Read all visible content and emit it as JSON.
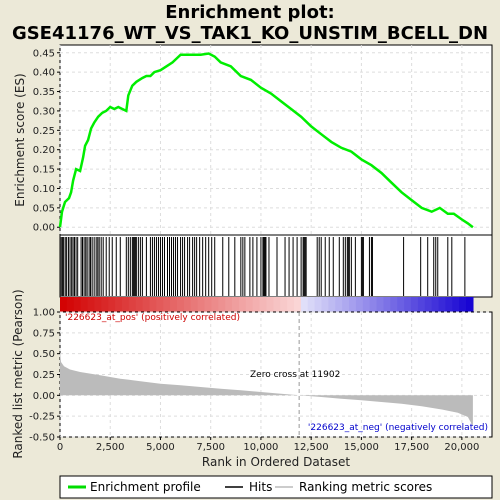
{
  "chart_data": {
    "type": "line",
    "title_line1": "Enrichment plot:",
    "title_line2": "GSE41176_WT_VS_TAK1_KO_UNSTIM_BCELL_DN",
    "xlabel": "Rank in Ordered Dataset",
    "ylabel_top": "Enrichment score (ES)",
    "ylabel_bottom": "Ranked list metric (Pearson)",
    "x_range": [
      0,
      21500
    ],
    "x_ticks": [
      0,
      2500,
      5000,
      7500,
      10000,
      12500,
      15000,
      17500,
      20000
    ],
    "x_tick_labels": [
      "0",
      "2,500",
      "5,000",
      "7,500",
      "10,000",
      "12,500",
      "15,000",
      "17,500",
      "20,000"
    ],
    "es_ylim": [
      -0.02,
      0.47
    ],
    "es_ticks": [
      0.0,
      0.05,
      0.1,
      0.15,
      0.2,
      0.25,
      0.3,
      0.35,
      0.4,
      0.45
    ],
    "es_tick_labels": [
      "0.00",
      "0.05",
      "0.10",
      "0.15",
      "0.20",
      "0.25",
      "0.30",
      "0.35",
      "0.40",
      "0.45"
    ],
    "metric_ylim": [
      -0.5,
      1.0
    ],
    "metric_ticks": [
      -0.5,
      -0.25,
      0.0,
      0.25,
      0.5,
      0.75,
      1.0
    ],
    "metric_tick_labels": [
      "-0.50",
      "-0.25",
      "0.00",
      "0.25",
      "0.50",
      "0.75",
      "1.00"
    ],
    "grid": true,
    "es_curve": [
      [
        0,
        0.0
      ],
      [
        100,
        0.04
      ],
      [
        250,
        0.065
      ],
      [
        450,
        0.075
      ],
      [
        550,
        0.09
      ],
      [
        650,
        0.12
      ],
      [
        800,
        0.15
      ],
      [
        1000,
        0.145
      ],
      [
        1150,
        0.18
      ],
      [
        1250,
        0.21
      ],
      [
        1400,
        0.225
      ],
      [
        1550,
        0.255
      ],
      [
        1700,
        0.27
      ],
      [
        1900,
        0.285
      ],
      [
        2100,
        0.295
      ],
      [
        2300,
        0.3
      ],
      [
        2500,
        0.31
      ],
      [
        2700,
        0.305
      ],
      [
        2900,
        0.31
      ],
      [
        3100,
        0.305
      ],
      [
        3300,
        0.3
      ],
      [
        3400,
        0.34
      ],
      [
        3600,
        0.365
      ],
      [
        3800,
        0.375
      ],
      [
        4100,
        0.385
      ],
      [
        4300,
        0.39
      ],
      [
        4500,
        0.39
      ],
      [
        4700,
        0.4
      ],
      [
        5000,
        0.405
      ],
      [
        5300,
        0.415
      ],
      [
        5600,
        0.425
      ],
      [
        5800,
        0.435
      ],
      [
        6000,
        0.445
      ],
      [
        6300,
        0.445
      ],
      [
        6600,
        0.445
      ],
      [
        7000,
        0.445
      ],
      [
        7400,
        0.448
      ],
      [
        7700,
        0.44
      ],
      [
        8000,
        0.425
      ],
      [
        8500,
        0.415
      ],
      [
        9000,
        0.39
      ],
      [
        9500,
        0.38
      ],
      [
        10000,
        0.36
      ],
      [
        10500,
        0.345
      ],
      [
        11000,
        0.325
      ],
      [
        11500,
        0.305
      ],
      [
        12000,
        0.285
      ],
      [
        12500,
        0.26
      ],
      [
        13000,
        0.24
      ],
      [
        13500,
        0.22
      ],
      [
        14000,
        0.205
      ],
      [
        14500,
        0.195
      ],
      [
        15000,
        0.175
      ],
      [
        15500,
        0.16
      ],
      [
        16000,
        0.14
      ],
      [
        16500,
        0.115
      ],
      [
        17000,
        0.09
      ],
      [
        17500,
        0.07
      ],
      [
        18000,
        0.05
      ],
      [
        18500,
        0.04
      ],
      [
        18900,
        0.05
      ],
      [
        19300,
        0.035
      ],
      [
        19600,
        0.035
      ],
      [
        20000,
        0.02
      ],
      [
        20300,
        0.01
      ],
      [
        20550,
        0.0
      ]
    ],
    "hits": [
      60,
      120,
      180,
      260,
      330,
      420,
      500,
      580,
      650,
      720,
      800,
      880,
      1050,
      1120,
      1200,
      1280,
      1350,
      1450,
      1520,
      1600,
      1700,
      1800,
      1880,
      1950,
      2050,
      2150,
      2300,
      2450,
      2600,
      2800,
      3000,
      3300,
      3400,
      3500,
      3600,
      3650,
      3700,
      3750,
      3800,
      3900,
      4000,
      4100,
      4300,
      4500,
      4600,
      4700,
      4800,
      4900,
      5000,
      5100,
      5200,
      5350,
      5450,
      5550,
      5650,
      5750,
      5850,
      6000,
      6100,
      6200,
      6350,
      6450,
      6600,
      6700,
      6800,
      6950,
      7100,
      7250,
      7400,
      7550,
      7700,
      8100,
      8400,
      8700,
      9000,
      9100,
      9200,
      9450,
      9600,
      9800,
      10000,
      10100,
      10150,
      10200,
      10250,
      10400,
      10800,
      11200,
      11400,
      11600,
      11800,
      12000,
      12100,
      12150,
      12200,
      12250,
      12800,
      12900,
      13000,
      13200,
      13400,
      13600,
      13900,
      14100,
      14200,
      14300,
      14350,
      14400,
      14500,
      14700,
      15000,
      15050,
      15100,
      15400,
      15500,
      15550,
      17100,
      17950,
      18300,
      18600,
      18700,
      18800,
      19300,
      19500,
      20150
    ],
    "metric_curve": [
      [
        0,
        0.52
      ],
      [
        50,
        0.4
      ],
      [
        200,
        0.35
      ],
      [
        500,
        0.31
      ],
      [
        1000,
        0.28
      ],
      [
        2000,
        0.24
      ],
      [
        3000,
        0.2
      ],
      [
        4000,
        0.17
      ],
      [
        5000,
        0.14
      ],
      [
        6000,
        0.12
      ],
      [
        7000,
        0.1
      ],
      [
        8000,
        0.08
      ],
      [
        9000,
        0.06
      ],
      [
        10000,
        0.04
      ],
      [
        11000,
        0.02
      ],
      [
        11902,
        0.0
      ],
      [
        13000,
        -0.02
      ],
      [
        14000,
        -0.04
      ],
      [
        15000,
        -0.06
      ],
      [
        16000,
        -0.08
      ],
      [
        17000,
        -0.1
      ],
      [
        18000,
        -0.13
      ],
      [
        19000,
        -0.17
      ],
      [
        19800,
        -0.21
      ],
      [
        20300,
        -0.26
      ],
      [
        20550,
        -0.37
      ]
    ],
    "zero_cross": 11902,
    "zero_cross_text": "Zero cross at 11902",
    "pos_label": "'226623_at_pos' (positively correlated)",
    "neg_label": "'226623_at_neg' (negatively correlated)",
    "legend": [
      {
        "label": "Enrichment profile",
        "color": "#00dd00"
      },
      {
        "label": "Hits",
        "color": "#000000"
      },
      {
        "label": "Ranking metric scores",
        "color": "#bbbbbb"
      }
    ],
    "colors": {
      "es_line": "#00ee00",
      "pos_text": "#cc0000",
      "neg_text": "#0000cc",
      "metric_fill": "#bbbbbb",
      "zero_line": "#999999"
    }
  }
}
